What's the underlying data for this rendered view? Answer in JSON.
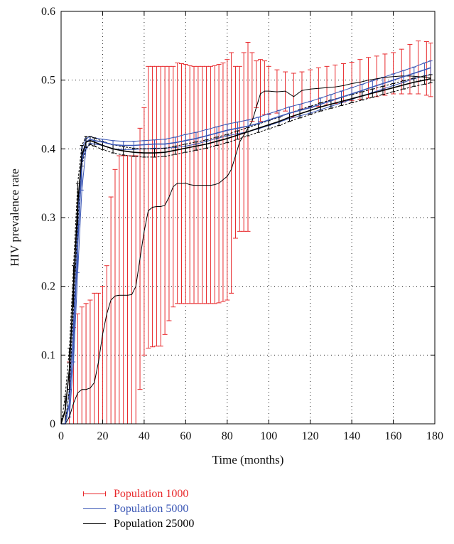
{
  "chart_data": {
    "type": "line",
    "xlabel": "Time (months)",
    "ylabel": "HIV prevalence rate",
    "xlim": [
      0,
      180
    ],
    "ylim": [
      0,
      0.6
    ],
    "xticks": [
      "0",
      "20",
      "40",
      "60",
      "80",
      "100",
      "120",
      "140",
      "160",
      "180"
    ],
    "yticks": [
      "0",
      "0.1",
      "0.2",
      "0.3",
      "0.4",
      "0.5",
      "0.6"
    ],
    "grid": "dotted",
    "legend_position": "bottom",
    "series": [
      {
        "name": "Population 1000",
        "color": "#e8292c",
        "x": [
          0,
          2,
          4,
          6,
          8,
          10,
          12,
          14,
          16,
          18,
          20,
          22,
          24,
          26,
          28,
          30,
          32,
          34,
          36,
          38,
          40,
          42,
          44,
          46,
          48,
          50,
          52,
          54,
          56,
          58,
          60,
          62,
          64,
          66,
          68,
          70,
          72,
          74,
          76,
          78,
          80,
          82,
          84,
          86,
          88,
          90,
          92,
          94,
          96,
          98,
          100,
          104,
          108,
          112,
          116,
          120,
          124,
          128,
          132,
          136,
          140,
          144,
          148,
          152,
          156,
          160,
          164,
          168,
          172,
          176,
          178
        ],
        "y": [
          0.0,
          0.0,
          0.01,
          0.03,
          0.045,
          0.05,
          0.05,
          0.052,
          0.06,
          0.09,
          0.13,
          0.16,
          0.18,
          0.186,
          0.187,
          0.187,
          0.187,
          0.188,
          0.2,
          0.24,
          0.28,
          0.31,
          0.315,
          0.316,
          0.316,
          0.318,
          0.33,
          0.345,
          0.35,
          0.35,
          0.35,
          0.348,
          0.347,
          0.347,
          0.347,
          0.347,
          0.347,
          0.348,
          0.35,
          0.355,
          0.36,
          0.37,
          0.39,
          0.41,
          0.42,
          0.43,
          0.44,
          0.46,
          0.48,
          0.484,
          0.484,
          0.483,
          0.484,
          0.476,
          0.485,
          0.487,
          0.488,
          0.489,
          0.49,
          0.492,
          0.495,
          0.497,
          0.5,
          0.502,
          0.504,
          0.505,
          0.506,
          0.506,
          0.505,
          0.504,
          0.503
        ],
        "upper": [
          0.0,
          0.0,
          0.09,
          0.14,
          0.16,
          0.17,
          0.175,
          0.18,
          0.19,
          0.19,
          0.2,
          0.23,
          0.33,
          0.37,
          0.39,
          0.39,
          0.39,
          0.39,
          0.39,
          0.43,
          0.46,
          0.52,
          0.52,
          0.52,
          0.52,
          0.52,
          0.52,
          0.52,
          0.525,
          0.524,
          0.523,
          0.521,
          0.52,
          0.52,
          0.52,
          0.52,
          0.52,
          0.521,
          0.523,
          0.525,
          0.53,
          0.54,
          0.52,
          0.52,
          0.54,
          0.555,
          0.54,
          0.528,
          0.53,
          0.528,
          0.52,
          0.515,
          0.512,
          0.51,
          0.512,
          0.515,
          0.518,
          0.52,
          0.522,
          0.524,
          0.526,
          0.53,
          0.533,
          0.535,
          0.538,
          0.54,
          0.545,
          0.552,
          0.557,
          0.556,
          0.554
        ],
        "lower": [
          0.0,
          0.0,
          0.0,
          0.0,
          0.0,
          0.0,
          0.0,
          0.0,
          0.0,
          0.0,
          0.0,
          0.0,
          0.0,
          0.0,
          0.0,
          0.0,
          0.0,
          0.0,
          0.0,
          0.05,
          0.1,
          0.11,
          0.112,
          0.113,
          0.113,
          0.13,
          0.15,
          0.17,
          0.175,
          0.175,
          0.175,
          0.175,
          0.175,
          0.175,
          0.175,
          0.175,
          0.175,
          0.175,
          0.176,
          0.178,
          0.18,
          0.19,
          0.27,
          0.28,
          0.28,
          0.28,
          0.44,
          0.46,
          0.44,
          0.45,
          0.45,
          0.452,
          0.455,
          0.446,
          0.458,
          0.46,
          0.462,
          0.464,
          0.466,
          0.468,
          0.47,
          0.472,
          0.474,
          0.476,
          0.478,
          0.48,
          0.48,
          0.48,
          0.48,
          0.478,
          0.476
        ]
      },
      {
        "name": "Population 5000",
        "color": "#3a56b5",
        "x": [
          0,
          2,
          4,
          6,
          8,
          10,
          12,
          14,
          16,
          20,
          25,
          30,
          35,
          40,
          45,
          50,
          55,
          60,
          65,
          70,
          75,
          80,
          85,
          90,
          95,
          100,
          105,
          110,
          115,
          120,
          125,
          130,
          135,
          140,
          145,
          150,
          155,
          160,
          165,
          170,
          175,
          178
        ],
        "y": [
          0.0,
          0.0,
          0.03,
          0.12,
          0.26,
          0.38,
          0.41,
          0.414,
          0.412,
          0.41,
          0.406,
          0.405,
          0.405,
          0.406,
          0.407,
          0.407,
          0.409,
          0.412,
          0.415,
          0.419,
          0.423,
          0.427,
          0.43,
          0.433,
          0.437,
          0.442,
          0.447,
          0.452,
          0.456,
          0.46,
          0.465,
          0.47,
          0.475,
          0.48,
          0.485,
          0.49,
          0.495,
          0.5,
          0.505,
          0.51,
          0.515,
          0.518
        ],
        "upper": [
          0.0,
          0.0,
          0.05,
          0.15,
          0.3,
          0.4,
          0.415,
          0.418,
          0.416,
          0.414,
          0.412,
          0.411,
          0.411,
          0.412,
          0.413,
          0.414,
          0.417,
          0.421,
          0.424,
          0.428,
          0.432,
          0.436,
          0.439,
          0.442,
          0.446,
          0.451,
          0.456,
          0.461,
          0.465,
          0.469,
          0.474,
          0.479,
          0.484,
          0.489,
          0.494,
          0.499,
          0.504,
          0.509,
          0.514,
          0.519,
          0.525,
          0.528
        ],
        "lower": [
          0.0,
          0.0,
          0.01,
          0.09,
          0.22,
          0.34,
          0.4,
          0.408,
          0.407,
          0.405,
          0.4,
          0.399,
          0.399,
          0.4,
          0.401,
          0.401,
          0.402,
          0.404,
          0.407,
          0.411,
          0.415,
          0.419,
          0.422,
          0.425,
          0.429,
          0.434,
          0.439,
          0.444,
          0.448,
          0.452,
          0.457,
          0.462,
          0.467,
          0.472,
          0.477,
          0.482,
          0.487,
          0.492,
          0.497,
          0.502,
          0.506,
          0.508
        ]
      },
      {
        "name": "Population 25000",
        "color": "#000000",
        "x": [
          0,
          2,
          4,
          6,
          8,
          10,
          12,
          14,
          16,
          20,
          25,
          30,
          35,
          40,
          45,
          50,
          55,
          60,
          65,
          70,
          75,
          80,
          85,
          90,
          95,
          100,
          105,
          110,
          115,
          120,
          125,
          130,
          135,
          140,
          145,
          150,
          155,
          160,
          165,
          170,
          175,
          178
        ],
        "y": [
          0.0,
          0.02,
          0.08,
          0.2,
          0.32,
          0.39,
          0.41,
          0.412,
          0.41,
          0.405,
          0.4,
          0.397,
          0.395,
          0.394,
          0.394,
          0.395,
          0.398,
          0.401,
          0.404,
          0.407,
          0.411,
          0.415,
          0.42,
          0.425,
          0.43,
          0.435,
          0.44,
          0.446,
          0.451,
          0.456,
          0.461,
          0.465,
          0.469,
          0.473,
          0.477,
          0.481,
          0.485,
          0.489,
          0.493,
          0.497,
          0.5,
          0.502
        ],
        "upper": [
          0.0,
          0.04,
          0.11,
          0.23,
          0.35,
          0.405,
          0.418,
          0.418,
          0.416,
          0.411,
          0.406,
          0.403,
          0.401,
          0.4,
          0.4,
          0.401,
          0.404,
          0.407,
          0.41,
          0.413,
          0.417,
          0.421,
          0.426,
          0.431,
          0.436,
          0.441,
          0.446,
          0.452,
          0.457,
          0.462,
          0.467,
          0.471,
          0.475,
          0.479,
          0.483,
          0.487,
          0.491,
          0.495,
          0.499,
          0.503,
          0.506,
          0.508
        ],
        "lower": [
          0.0,
          0.0,
          0.05,
          0.17,
          0.29,
          0.375,
          0.402,
          0.406,
          0.404,
          0.399,
          0.394,
          0.391,
          0.389,
          0.388,
          0.388,
          0.389,
          0.392,
          0.395,
          0.398,
          0.401,
          0.405,
          0.409,
          0.414,
          0.419,
          0.424,
          0.429,
          0.434,
          0.44,
          0.445,
          0.45,
          0.455,
          0.459,
          0.463,
          0.467,
          0.471,
          0.475,
          0.479,
          0.483,
          0.487,
          0.491,
          0.494,
          0.496
        ]
      }
    ]
  }
}
